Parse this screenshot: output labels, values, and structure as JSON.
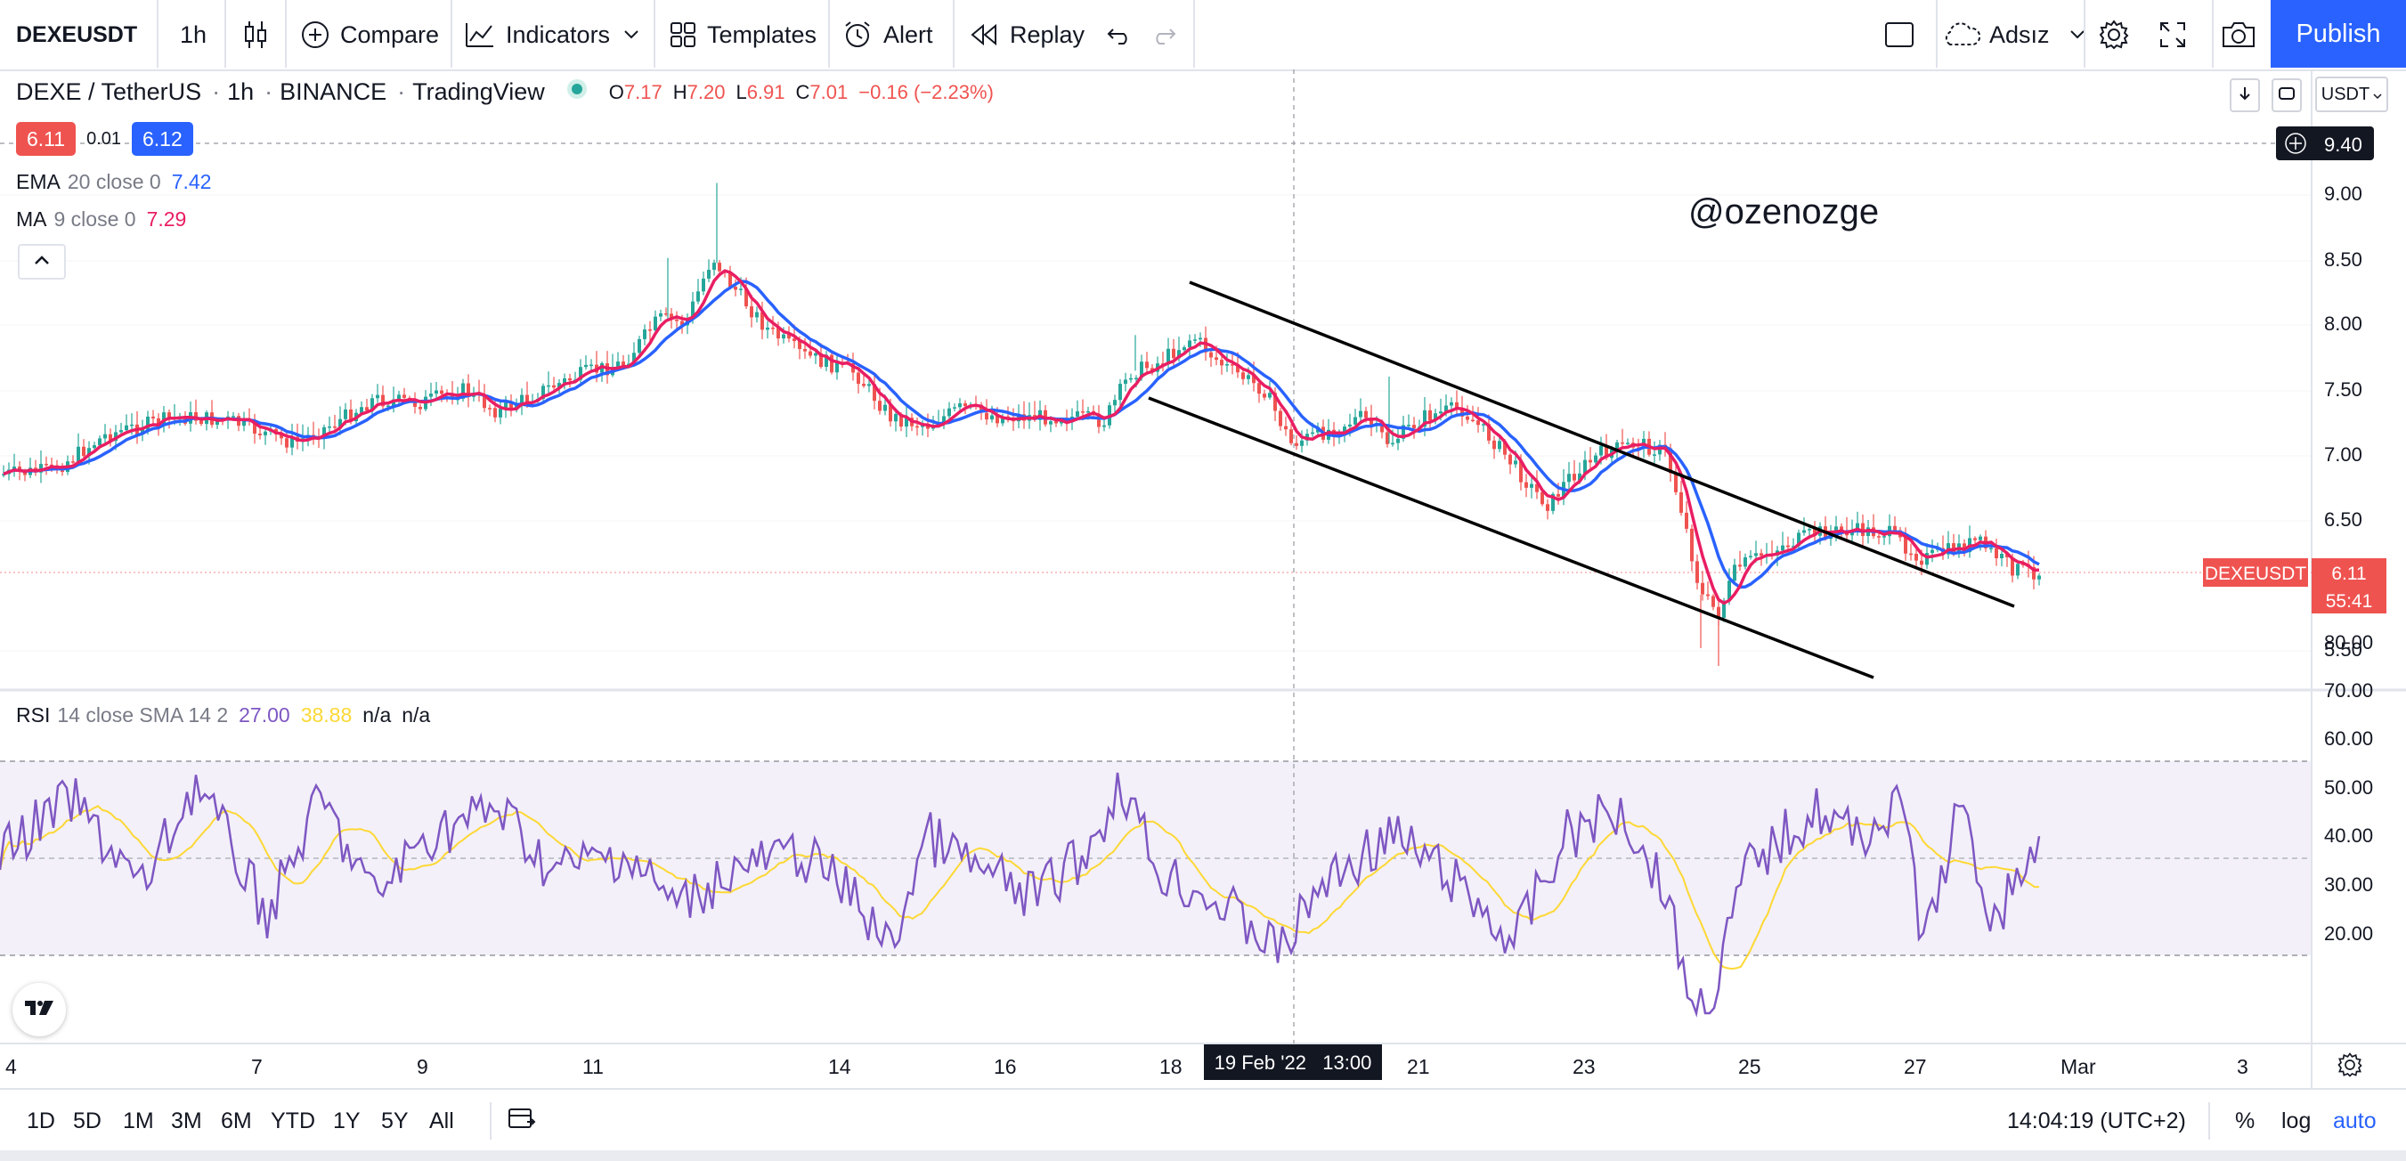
{
  "toolbar": {
    "symbol": "DEXEUSDT",
    "interval": "1h",
    "compare_label": "Compare",
    "indicators_label": "Indicators",
    "templates_label": "Templates",
    "alert_label": "Alert",
    "replay_label": "Replay",
    "layout_name": "Adsız",
    "publish_label": "Publish"
  },
  "header": {
    "pair": "DEXE / TetherUS",
    "interval": "1h",
    "exchange": "BINANCE",
    "source": "TradingView",
    "o_label": "O",
    "o": "7.17",
    "h_label": "H",
    "h": "7.20",
    "l_label": "L",
    "l": "6.91",
    "c_label": "C",
    "c": "7.01",
    "change": "−0.16 (−2.23%)",
    "bid": "6.11",
    "spread": "0.01",
    "ask": "6.12",
    "currency": "USDT"
  },
  "indicators": {
    "ema_name": "EMA",
    "ema_params": "20 close 0",
    "ema_value": "7.42",
    "ma_name": "MA",
    "ma_params": "9 close 0",
    "ma_value": "7.29",
    "rsi_name": "RSI",
    "rsi_params": "14 close SMA 14 2",
    "rsi_value": "27.00",
    "rsi_sma_value": "38.88",
    "rsi_na1": "n/a",
    "rsi_na2": "n/a"
  },
  "watermark": "@ozenozge",
  "price_axis": {
    "labels": [
      "9.00",
      "8.50",
      "8.00",
      "7.50",
      "7.00",
      "6.50",
      "5.50"
    ],
    "crosshair_price": "9.40",
    "last_symbol": "DEXEUSDT",
    "last_price": "6.11",
    "countdown": "55:41"
  },
  "rsi_axis": {
    "labels": [
      "80.00",
      "70.00",
      "60.00",
      "50.00",
      "40.00",
      "30.00",
      "20.00"
    ]
  },
  "time_axis": {
    "labels": [
      "4",
      "7",
      "9",
      "11",
      "14",
      "16",
      "18",
      "21",
      "23",
      "25",
      "27",
      "Mar",
      "3"
    ],
    "crosshair_time": "19 Feb '22   13:00"
  },
  "bottom_bar": {
    "ranges": [
      "1D",
      "5D",
      "1M",
      "3M",
      "6M",
      "YTD",
      "1Y",
      "5Y",
      "All"
    ],
    "clock": "14:04:19 (UTC+2)",
    "percent_label": "%",
    "log_label": "log",
    "auto_label": "auto"
  },
  "colors": {
    "up": "#26a69a",
    "down": "#ef5350",
    "ema": "#2962ff",
    "ma": "#e91e63",
    "rsi": "#7e57c2",
    "rsi_sma": "#fdd835",
    "publish": "#2962ff"
  },
  "icons": [
    "candles-icon",
    "compare-plus-icon",
    "indicators-icon",
    "templates-icon",
    "alert-clock-icon",
    "replay-icon",
    "undo-icon",
    "redo-icon",
    "rectangle-icon",
    "cloud-icon",
    "gear-icon",
    "fullscreen-icon",
    "camera-icon",
    "tradingview-logo-icon",
    "date-range-icon",
    "settings-gear-icon"
  ]
}
